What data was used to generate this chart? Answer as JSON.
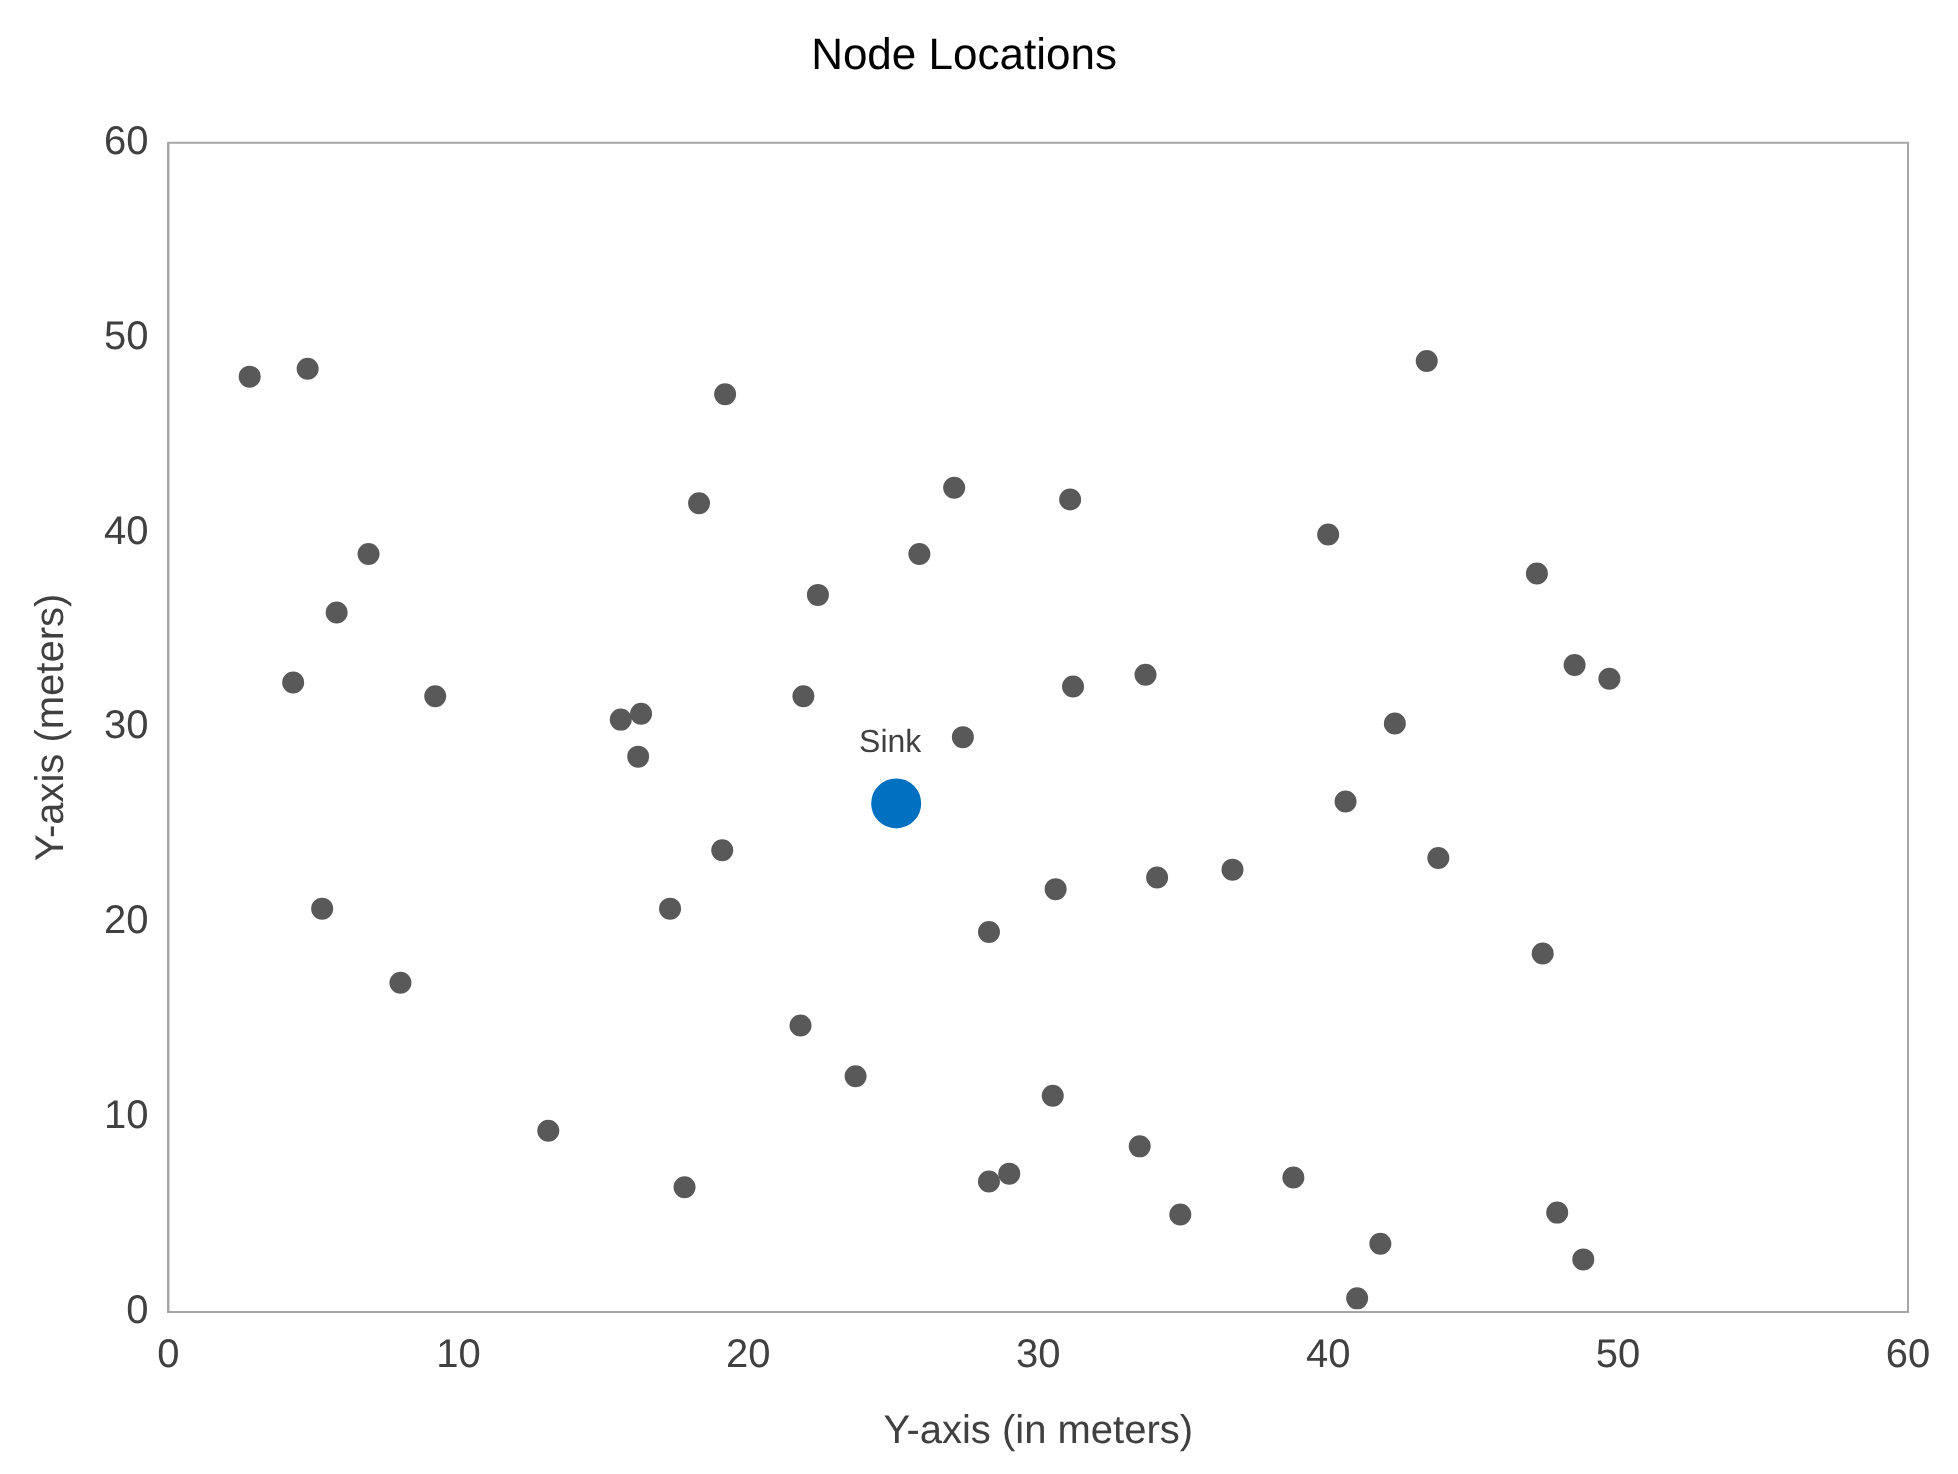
{
  "chart_data": {
    "type": "scatter",
    "title": "Node Locations",
    "xlabel": "Y-axis (in meters)",
    "ylabel": "Y-axis (meters)",
    "xlim": [
      0,
      60
    ],
    "xticks": [
      0,
      10,
      20,
      30,
      40,
      50,
      60
    ],
    "ylim": [
      0,
      60
    ],
    "yticks": [
      0,
      10,
      20,
      30,
      40,
      50,
      60
    ],
    "grid": false,
    "legend": false,
    "marker": "circle",
    "series": [
      {
        "color": "#595959",
        "x": [
          2.8,
          4.8,
          6.9,
          5.8,
          4.3,
          9.2,
          5.3,
          8.0,
          13.1,
          17.8,
          19.2,
          18.3,
          15.6,
          16.3,
          16.2,
          19.1,
          17.3,
          22.4,
          21.9,
          21.8,
          23.7,
          27.1,
          25.9,
          31.1,
          27.4,
          31.2,
          33.7,
          30.6,
          28.3,
          34.1,
          36.7,
          30.5,
          28.3,
          29.0,
          33.5,
          34.9,
          38.8,
          41.8,
          41.0,
          40.0,
          43.4,
          47.2,
          48.5,
          49.7,
          42.3,
          40.6,
          43.8,
          47.4,
          47.9,
          48.8
        ],
        "values": [
          48.0,
          48.4,
          38.9,
          35.9,
          32.3,
          31.6,
          20.7,
          16.9,
          9.3,
          6.4,
          47.1,
          41.5,
          30.4,
          30.7,
          28.5,
          23.7,
          20.7,
          36.8,
          31.6,
          14.7,
          12.1,
          42.3,
          38.9,
          41.7,
          29.5,
          32.1,
          32.7,
          21.7,
          19.5,
          22.3,
          22.7,
          11.1,
          6.7,
          7.1,
          8.5,
          5.0,
          6.9,
          3.5,
          0.7,
          39.9,
          48.8,
          37.9,
          33.2,
          32.5,
          30.2,
          26.2,
          23.3,
          18.4,
          5.1,
          2.7
        ]
      },
      {
        "name": "Sink",
        "color": "#0070c0",
        "x": [
          25.1
        ],
        "values": [
          26.1
        ]
      }
    ]
  }
}
